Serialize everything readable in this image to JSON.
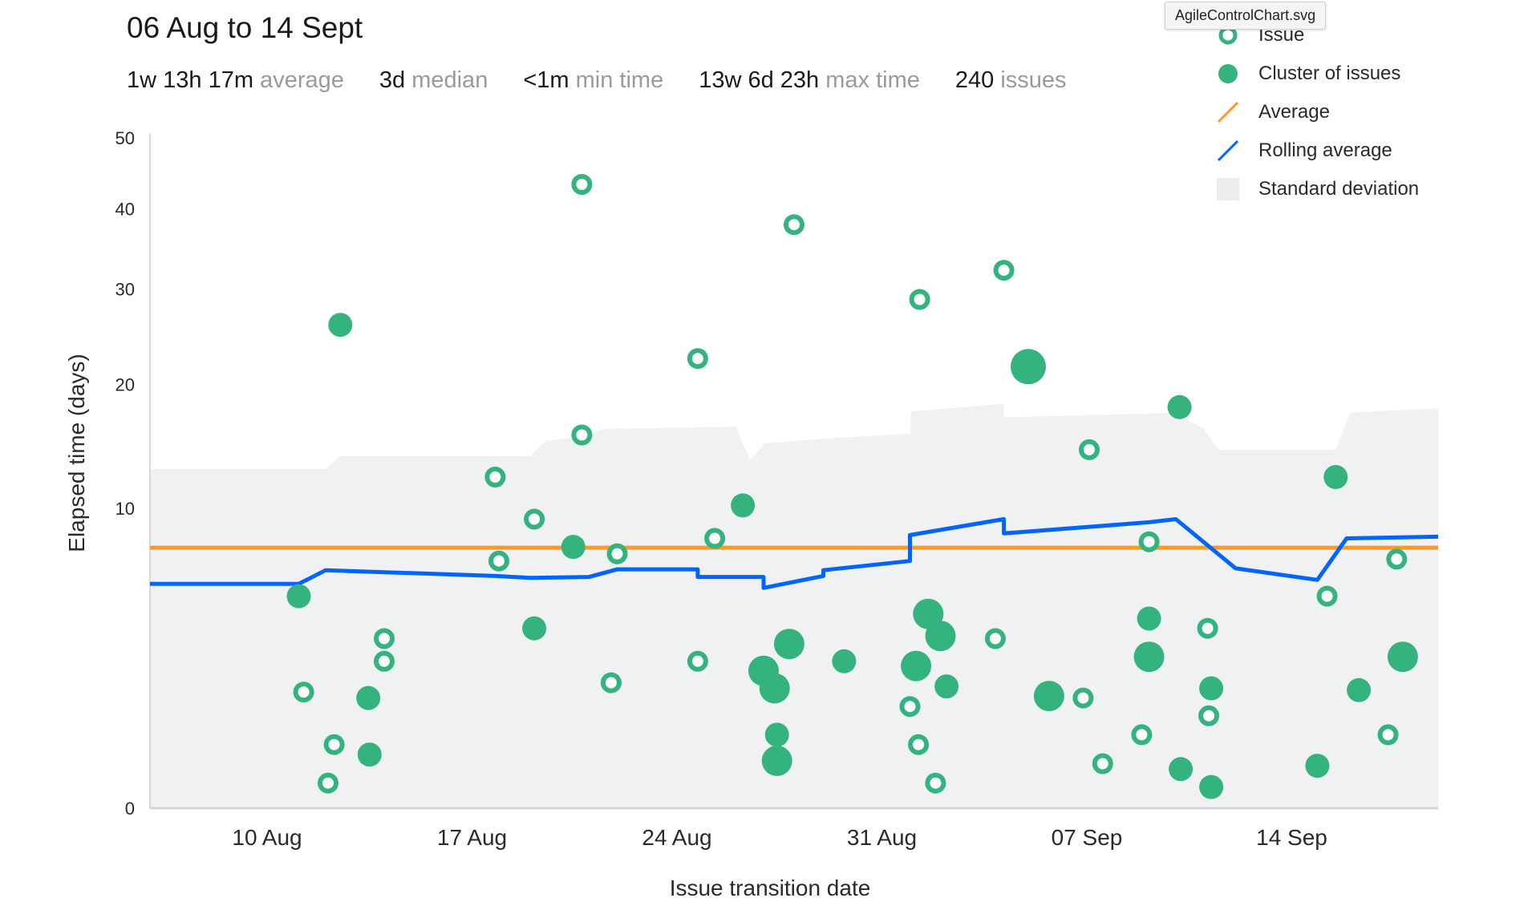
{
  "header": {
    "title": "06 Aug to 14 Sept",
    "stats": [
      {
        "value": "1w 13h 17m",
        "label": "average"
      },
      {
        "value": "3d",
        "label": "median"
      },
      {
        "value": "<1m",
        "label": "min time"
      },
      {
        "value": "13w 6d 23h",
        "label": "max time"
      },
      {
        "value": "240",
        "label": "issues"
      }
    ]
  },
  "tooltip": {
    "text": "AgileControlChart.svg"
  },
  "legend": [
    {
      "label": "Issue",
      "icon": "ring-icon",
      "color": "#35b37e"
    },
    {
      "label": "Cluster of issues",
      "icon": "dot-icon",
      "color": "#35b37e"
    },
    {
      "label": "Average",
      "icon": "orange-line-icon",
      "color": "#ff991f"
    },
    {
      "label": "Rolling average",
      "icon": "blue-line-icon",
      "color": "#0065ff"
    },
    {
      "label": "Standard deviation",
      "icon": "gray-square-icon",
      "color": "#eaecee"
    }
  ],
  "chart_data": {
    "type": "scatter",
    "xlabel": "Issue transition date",
    "ylabel": "Elapsed time (days)",
    "y_scale": "sqrt",
    "ylim": [
      0,
      50
    ],
    "xlim": [
      "2018-08-06",
      "2018-09-19"
    ],
    "y_ticks": [
      0,
      10,
      20,
      30,
      40,
      50
    ],
    "x_ticks": [
      {
        "date": "2018-08-10",
        "label": "10 Aug"
      },
      {
        "date": "2018-08-17",
        "label": "17 Aug"
      },
      {
        "date": "2018-08-24",
        "label": "24 Aug"
      },
      {
        "date": "2018-08-31",
        "label": "31 Aug"
      },
      {
        "date": "2018-09-07",
        "label": "07 Sep"
      },
      {
        "date": "2018-09-14",
        "label": "14 Sep"
      }
    ],
    "average": 7.55,
    "colors": {
      "issue": "#35b37e",
      "average": "#ff991f",
      "rolling": "#0065ff",
      "stddev": "#eff1f3"
    },
    "issues": [
      {
        "x": "2018-08-11 06:00",
        "y": 1.5
      },
      {
        "x": "2018-08-12 07:00",
        "y": 0.45
      },
      {
        "x": "2018-08-12 02:00",
        "y": 0.07
      },
      {
        "x": "2018-08-14 00:00",
        "y": 3.2
      },
      {
        "x": "2018-08-14 00:00",
        "y": 2.4
      },
      {
        "x": "2018-08-17 19:00",
        "y": 12.2
      },
      {
        "x": "2018-08-17 22:00",
        "y": 6.8
      },
      {
        "x": "2018-08-19 03:00",
        "y": 9.3
      },
      {
        "x": "2018-08-20 18:00",
        "y": 43.3
      },
      {
        "x": "2018-08-20 18:00",
        "y": 15.5
      },
      {
        "x": "2018-08-21 18:00",
        "y": 1.75
      },
      {
        "x": "2018-08-21 23:00",
        "y": 7.2
      },
      {
        "x": "2018-08-24 17:00",
        "y": 22.5
      },
      {
        "x": "2018-08-24 17:00",
        "y": 2.4
      },
      {
        "x": "2018-08-25 07:00",
        "y": 8.1
      },
      {
        "x": "2018-08-28 00:00",
        "y": 37.9
      },
      {
        "x": "2018-08-31 23:00",
        "y": 1.15
      },
      {
        "x": "2018-09-01 06:00",
        "y": 0.45
      },
      {
        "x": "2018-09-01 07:00",
        "y": 28.8
      },
      {
        "x": "2018-09-01 20:00",
        "y": 0.07
      },
      {
        "x": "2018-09-03 21:00",
        "y": 3.2
      },
      {
        "x": "2018-09-04 04:00",
        "y": 32.2
      },
      {
        "x": "2018-09-06 21:00",
        "y": 1.35
      },
      {
        "x": "2018-09-07 02:00",
        "y": 14.3
      },
      {
        "x": "2018-09-07 13:00",
        "y": 0.22
      },
      {
        "x": "2018-09-08 21:00",
        "y": 0.6
      },
      {
        "x": "2018-09-09 03:00",
        "y": 7.9
      },
      {
        "x": "2018-09-11 03:00",
        "y": 3.6
      },
      {
        "x": "2018-09-11 04:00",
        "y": 0.95
      },
      {
        "x": "2018-09-15 05:00",
        "y": 5.0
      },
      {
        "x": "2018-09-17 07:00",
        "y": 0.6
      },
      {
        "x": "2018-09-17 14:00",
        "y": 6.9
      }
    ],
    "clusters": [
      {
        "x": "2018-08-11 02:00",
        "y": 5.0,
        "size": "small"
      },
      {
        "x": "2018-08-12 12:00",
        "y": 26.0,
        "size": "small"
      },
      {
        "x": "2018-08-13 11:00",
        "y": 1.35,
        "size": "small"
      },
      {
        "x": "2018-08-13 12:00",
        "y": 0.32,
        "size": "small"
      },
      {
        "x": "2018-08-19 03:00",
        "y": 3.6,
        "size": "small"
      },
      {
        "x": "2018-08-20 11:00",
        "y": 7.6,
        "size": "small"
      },
      {
        "x": "2018-08-26 06:00",
        "y": 10.2,
        "size": "small"
      },
      {
        "x": "2018-08-26 23:00",
        "y": 2.1,
        "size": "medium"
      },
      {
        "x": "2018-08-27 08:00",
        "y": 1.6,
        "size": "medium"
      },
      {
        "x": "2018-08-27 10:00",
        "y": 0.6,
        "size": "small"
      },
      {
        "x": "2018-08-27 10:00",
        "y": 0.25,
        "size": "medium"
      },
      {
        "x": "2018-08-27 20:00",
        "y": 3.0,
        "size": "medium"
      },
      {
        "x": "2018-08-29 17:00",
        "y": 2.4,
        "size": "small"
      },
      {
        "x": "2018-09-01 04:00",
        "y": 2.25,
        "size": "medium"
      },
      {
        "x": "2018-09-01 14:00",
        "y": 4.2,
        "size": "medium"
      },
      {
        "x": "2018-09-02 00:00",
        "y": 3.3,
        "size": "medium"
      },
      {
        "x": "2018-09-02 05:00",
        "y": 1.65,
        "size": "small"
      },
      {
        "x": "2018-09-05 00:00",
        "y": 21.7,
        "size": "large"
      },
      {
        "x": "2018-09-05 17:00",
        "y": 1.4,
        "size": "medium"
      },
      {
        "x": "2018-09-09 03:00",
        "y": 4.0,
        "size": "small"
      },
      {
        "x": "2018-09-09 03:00",
        "y": 2.55,
        "size": "medium"
      },
      {
        "x": "2018-09-10 04:00",
        "y": 17.9,
        "size": "small"
      },
      {
        "x": "2018-09-10 05:00",
        "y": 0.17,
        "size": "small"
      },
      {
        "x": "2018-09-11 06:00",
        "y": 1.6,
        "size": "small"
      },
      {
        "x": "2018-09-11 06:00",
        "y": 0.05,
        "size": "small"
      },
      {
        "x": "2018-09-14 21:00",
        "y": 0.2,
        "size": "small"
      },
      {
        "x": "2018-09-15 12:00",
        "y": 12.2,
        "size": "small"
      },
      {
        "x": "2018-09-16 07:00",
        "y": 1.55,
        "size": "small"
      },
      {
        "x": "2018-09-17 19:00",
        "y": 2.55,
        "size": "medium"
      }
    ],
    "rolling_average": [
      {
        "x": "2018-08-06 00:00",
        "y": 5.6
      },
      {
        "x": "2018-08-11 02:00",
        "y": 5.6
      },
      {
        "x": "2018-08-12 00:00",
        "y": 6.3
      },
      {
        "x": "2018-08-17 19:00",
        "y": 6.0
      },
      {
        "x": "2018-08-19 00:00",
        "y": 5.9
      },
      {
        "x": "2018-08-21 00:00",
        "y": 5.95
      },
      {
        "x": "2018-08-21 23:00",
        "y": 6.35
      },
      {
        "x": "2018-08-24 17:00",
        "y": 6.35
      },
      {
        "x": "2018-08-24 17:00",
        "y": 5.95
      },
      {
        "x": "2018-08-26 23:00",
        "y": 5.95
      },
      {
        "x": "2018-08-26 23:00",
        "y": 5.4
      },
      {
        "x": "2018-08-29 00:00",
        "y": 6.0
      },
      {
        "x": "2018-08-29 00:00",
        "y": 6.3
      },
      {
        "x": "2018-08-31 23:00",
        "y": 6.8
      },
      {
        "x": "2018-08-31 23:00",
        "y": 8.3
      },
      {
        "x": "2018-09-04 04:00",
        "y": 9.3
      },
      {
        "x": "2018-09-04 04:00",
        "y": 8.4
      },
      {
        "x": "2018-09-09 03:00",
        "y": 9.1
      },
      {
        "x": "2018-09-10 01:00",
        "y": 9.3
      },
      {
        "x": "2018-09-12 02:00",
        "y": 6.4
      },
      {
        "x": "2018-09-14 21:00",
        "y": 5.8
      },
      {
        "x": "2018-09-15 21:00",
        "y": 8.1
      },
      {
        "x": "2018-09-19 00:00",
        "y": 8.2
      }
    ],
    "std_dev_upper": [
      {
        "x": "2018-08-06 00:00",
        "y": 12.8
      },
      {
        "x": "2018-08-12 00:00",
        "y": 12.8
      },
      {
        "x": "2018-08-12 12:00",
        "y": 13.8
      },
      {
        "x": "2018-08-19 00:00",
        "y": 13.8
      },
      {
        "x": "2018-08-19 12:00",
        "y": 15.0
      },
      {
        "x": "2018-08-21 00:00",
        "y": 15.5
      },
      {
        "x": "2018-08-21 12:00",
        "y": 16.0
      },
      {
        "x": "2018-08-26 00:00",
        "y": 16.2
      },
      {
        "x": "2018-08-26 12:00",
        "y": 13.5
      },
      {
        "x": "2018-08-27 00:00",
        "y": 14.8
      },
      {
        "x": "2018-08-29 00:00",
        "y": 15.2
      },
      {
        "x": "2018-08-31 23:00",
        "y": 15.6
      },
      {
        "x": "2018-09-01 00:00",
        "y": 17.5
      },
      {
        "x": "2018-09-04 04:00",
        "y": 18.2
      },
      {
        "x": "2018-09-04 04:00",
        "y": 17.0
      },
      {
        "x": "2018-09-10 00:00",
        "y": 17.4
      },
      {
        "x": "2018-09-11 00:00",
        "y": 16.0
      },
      {
        "x": "2018-09-11 12:00",
        "y": 14.3
      },
      {
        "x": "2018-09-15 12:00",
        "y": 14.3
      },
      {
        "x": "2018-09-16 00:00",
        "y": 17.4
      },
      {
        "x": "2018-09-19 00:00",
        "y": 17.8
      }
    ]
  }
}
